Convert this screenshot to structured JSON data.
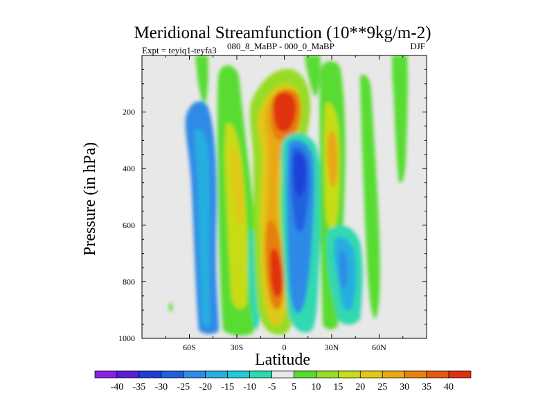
{
  "chart_data": {
    "type": "heatmap",
    "title": "Meridional Streamfunction (10**9kg/m-2)",
    "subtitle_left": "Expt = teyiq1-teyfa3",
    "subtitle_sup": "080_8_MaBP - 000_0_MaBP",
    "season": "DJF",
    "xlabel": "Latitude",
    "ylabel": "Pressure (in hPa)",
    "x_ticks": [
      {
        "value": -60,
        "label": "60S"
      },
      {
        "value": -30,
        "label": "30S"
      },
      {
        "value": 0,
        "label": "0"
      },
      {
        "value": 30,
        "label": "30N"
      },
      {
        "value": 60,
        "label": "60N"
      }
    ],
    "y_ticks": [
      {
        "value": 200,
        "label": "200"
      },
      {
        "value": 400,
        "label": "400"
      },
      {
        "value": 600,
        "label": "600"
      },
      {
        "value": 800,
        "label": "800"
      },
      {
        "value": 1000,
        "label": "1000"
      }
    ],
    "xlim": [
      -90,
      90
    ],
    "ylim": [
      1000,
      0
    ],
    "contour_levels": [
      -40,
      -35,
      -30,
      -25,
      -20,
      -15,
      -10,
      -5,
      5,
      10,
      15,
      20,
      25,
      30,
      35,
      40
    ],
    "colors": [
      "#8a20e8",
      "#5a20d8",
      "#1f3fd8",
      "#2060e0",
      "#2f8ae6",
      "#28aee0",
      "#22c8d4",
      "#30d8b0",
      "#e8e8e8",
      "#58dc30",
      "#96dc28",
      "#c8dc18",
      "#e0c818",
      "#e8a814",
      "#e68010",
      "#e45a10",
      "#e03010"
    ],
    "features": [
      {
        "x": [
          -50,
          -43
        ],
        "p": [
          200,
          970
        ],
        "value": -10,
        "note": "negative band near 45-50S"
      },
      {
        "x": [
          -38,
          -25
        ],
        "p": [
          20,
          980
        ],
        "value": 15,
        "note": "positive band near 30S"
      },
      {
        "x": [
          -10,
          8
        ],
        "p": [
          80,
          980
        ],
        "value": 25,
        "note": "broad positive column near equator"
      },
      {
        "x": [
          -5,
          5
        ],
        "p": [
          130,
          260
        ],
        "value": 40,
        "note": "upper maximum near 200 hPa"
      },
      {
        "x": [
          -5,
          2
        ],
        "p": [
          630,
          880
        ],
        "value": 40,
        "note": "lower maximum near 750 hPa"
      },
      {
        "x": [
          7,
          22
        ],
        "p": [
          250,
          960
        ],
        "value": -25,
        "note": "negative cell north of equator"
      },
      {
        "x": [
          11,
          16
        ],
        "p": [
          330,
          470
        ],
        "value": -35,
        "note": "negative core near 400 hPa"
      },
      {
        "x": [
          26,
          34
        ],
        "p": [
          0,
          980
        ],
        "value": 20,
        "note": "positive band near 30N"
      },
      {
        "x": [
          24,
          45
        ],
        "p": [
          640,
          930
        ],
        "value": -15,
        "note": "negative lobes near 30-45N"
      },
      {
        "x": [
          71,
          78
        ],
        "p": [
          0,
          310
        ],
        "value": 5,
        "note": "weak positive upper band near 75N"
      }
    ],
    "colorbar_labels": [
      "-40",
      "-35",
      "-30",
      "-25",
      "-20",
      "-15",
      "-10",
      "-5",
      "5",
      "10",
      "15",
      "20",
      "25",
      "30",
      "35",
      "40"
    ]
  }
}
